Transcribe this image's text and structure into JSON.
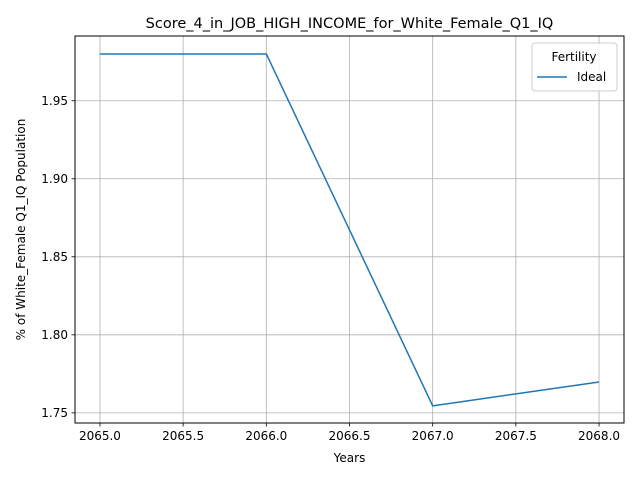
{
  "chart_data": {
    "type": "line",
    "title": "Score_4_in_JOB_HIGH_INCOME_for_White_Female_Q1_IQ",
    "xlabel": "Years",
    "ylabel": "% of White_Female Q1_IQ Population",
    "x": [
      2065,
      2066,
      2067,
      2068
    ],
    "series": [
      {
        "name": "Ideal",
        "values": [
          1.98,
          1.98,
          1.7545,
          1.7698
        ],
        "color": "#1f77b4"
      }
    ],
    "xlim": [
      2064.85,
      2068.15
    ],
    "ylim": [
      1.7435,
      1.9915
    ],
    "xticks": [
      2065.0,
      2065.5,
      2066.0,
      2066.5,
      2067.0,
      2067.5,
      2068.0
    ],
    "xtick_labels": [
      "2065.0",
      "2065.5",
      "2066.0",
      "2066.5",
      "2067.0",
      "2067.5",
      "2068.0"
    ],
    "yticks": [
      1.75,
      1.8,
      1.85,
      1.9,
      1.95
    ],
    "ytick_labels": [
      "1.75",
      "1.80",
      "1.85",
      "1.90",
      "1.95"
    ],
    "grid": true,
    "legend": {
      "title": "Fertility",
      "placement": "top-right"
    }
  }
}
